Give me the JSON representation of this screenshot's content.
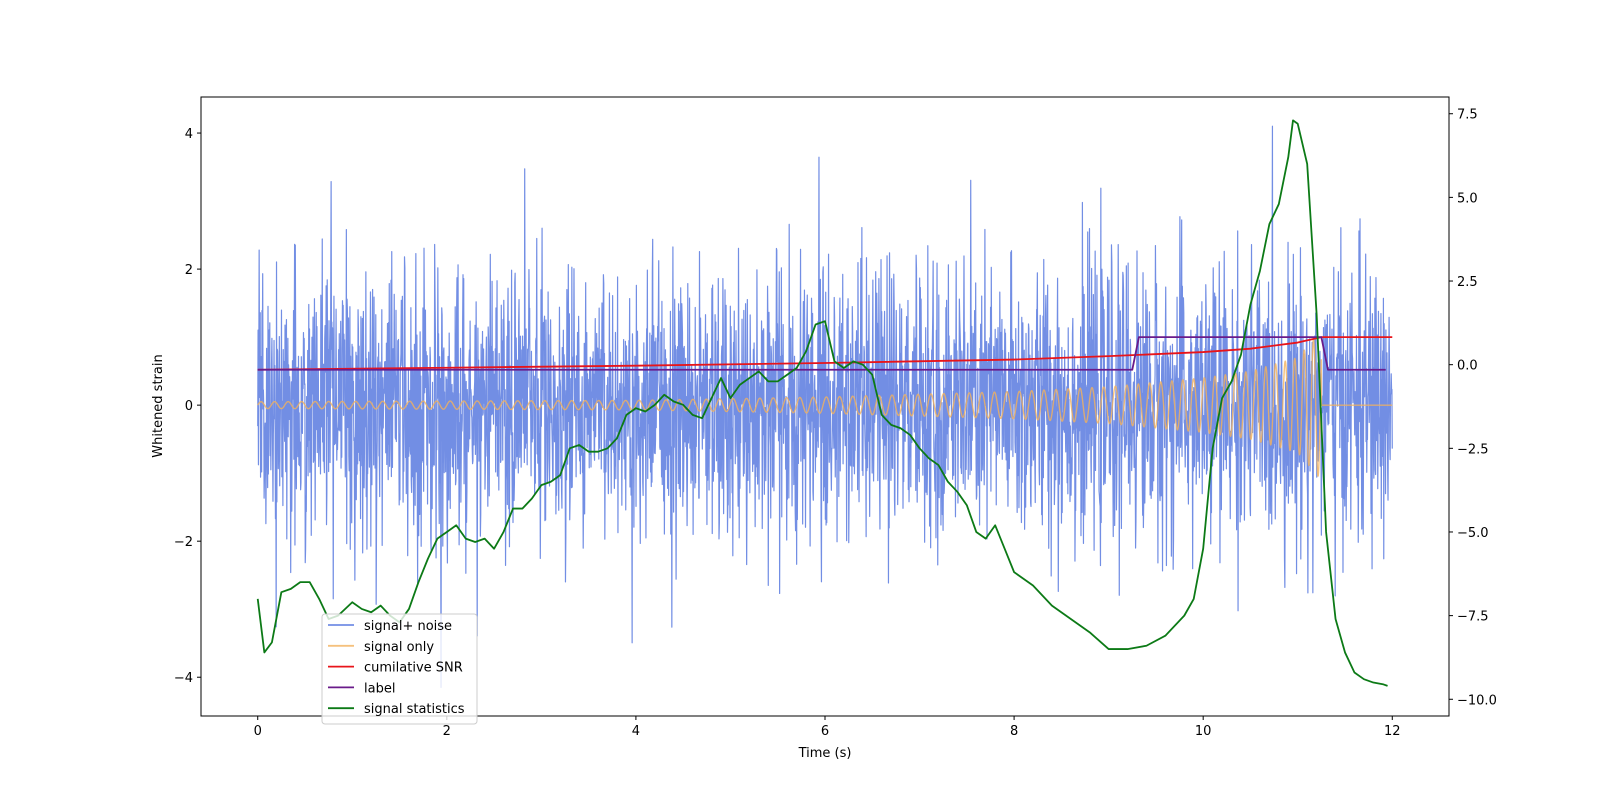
{
  "chart_data": {
    "type": "line",
    "xlabel": "Time (s)",
    "ylabel": "Whitened strain",
    "xlim": [
      -0.6,
      12.6
    ],
    "ylim": [
      -4.57,
      4.53
    ],
    "y2lim": [
      -10.5,
      8.0
    ],
    "x_ticks": [
      0,
      2,
      4,
      6,
      8,
      10,
      12
    ],
    "x_tick_labels": [
      "0",
      "2",
      "4",
      "6",
      "8",
      "10",
      "12"
    ],
    "y_ticks": [
      -4,
      -2,
      0,
      2,
      4
    ],
    "y_tick_labels": [
      "−4",
      "−2",
      "0",
      "2",
      "4"
    ],
    "y2_ticks": [
      -10.0,
      -7.5,
      -5.0,
      -2.5,
      0.0,
      2.5,
      5.0,
      7.5
    ],
    "y2_tick_labels": [
      "−10.0",
      "−7.5",
      "−5.0",
      "−2.5",
      "0.0",
      "2.5",
      "5.0",
      "7.5"
    ],
    "legend_position": "lower-left",
    "series": [
      {
        "name": "signal+ noise",
        "axis": "left",
        "color": "#6a88e3",
        "kind": "noise",
        "x_range": [
          0,
          12
        ],
        "envelope_std": 1.0,
        "approx_range": [
          -4.15,
          4.1
        ]
      },
      {
        "name": "signal only",
        "axis": "left",
        "color": "#f2b25c",
        "kind": "chirp",
        "x_range": [
          0,
          12
        ],
        "merger_time": 11.25,
        "amplitude_points": [
          [
            0,
            0.05
          ],
          [
            4,
            0.07
          ],
          [
            6,
            0.12
          ],
          [
            8,
            0.2
          ],
          [
            9,
            0.27
          ],
          [
            10,
            0.4
          ],
          [
            10.5,
            0.5
          ],
          [
            11,
            0.7
          ],
          [
            11.25,
            1.1
          ]
        ]
      },
      {
        "name": "cumilative SNR",
        "axis": "left",
        "color": "#e8141a",
        "x": [
          0,
          2,
          4,
          6,
          8,
          9,
          10,
          10.5,
          11,
          11.25,
          12
        ],
        "y": [
          0.52,
          0.55,
          0.58,
          0.62,
          0.67,
          0.72,
          0.78,
          0.83,
          0.92,
          1.0,
          1.0
        ]
      },
      {
        "name": "label",
        "axis": "left",
        "color": "#6a1b8a",
        "x": [
          0,
          9.25,
          9.32,
          11.25,
          11.32,
          11.93
        ],
        "y": [
          0.52,
          0.52,
          1.0,
          1.0,
          0.52,
          0.52
        ]
      },
      {
        "name": "signal statistics",
        "axis": "right",
        "color": "#0c7a16",
        "x": [
          0.0,
          0.07,
          0.15,
          0.25,
          0.35,
          0.45,
          0.55,
          0.65,
          0.75,
          0.85,
          1.0,
          1.1,
          1.2,
          1.3,
          1.4,
          1.5,
          1.6,
          1.7,
          1.8,
          1.9,
          2.0,
          2.1,
          2.2,
          2.3,
          2.4,
          2.5,
          2.6,
          2.7,
          2.8,
          2.9,
          3.0,
          3.1,
          3.2,
          3.3,
          3.4,
          3.5,
          3.6,
          3.7,
          3.8,
          3.9,
          4.0,
          4.1,
          4.2,
          4.3,
          4.4,
          4.5,
          4.6,
          4.7,
          4.8,
          4.9,
          5.0,
          5.1,
          5.2,
          5.3,
          5.4,
          5.5,
          5.6,
          5.7,
          5.8,
          5.9,
          6.0,
          6.1,
          6.2,
          6.3,
          6.4,
          6.5,
          6.6,
          6.7,
          6.8,
          6.9,
          7.0,
          7.1,
          7.2,
          7.3,
          7.4,
          7.5,
          7.6,
          7.7,
          7.8,
          7.9,
          8.0,
          8.2,
          8.4,
          8.6,
          8.8,
          9.0,
          9.2,
          9.4,
          9.6,
          9.8,
          9.9,
          10.0,
          10.1,
          10.2,
          10.3,
          10.4,
          10.5,
          10.6,
          10.7,
          10.8,
          10.9,
          10.95,
          11.0,
          11.1,
          11.2,
          11.3,
          11.4,
          11.5,
          11.6,
          11.7,
          11.8,
          11.9,
          11.95
        ],
        "y": [
          -7.0,
          -8.6,
          -8.3,
          -6.8,
          -6.7,
          -6.5,
          -6.5,
          -7.0,
          -7.6,
          -7.5,
          -7.1,
          -7.3,
          -7.4,
          -7.2,
          -7.5,
          -7.7,
          -7.3,
          -6.5,
          -5.8,
          -5.2,
          -5.0,
          -4.8,
          -5.2,
          -5.3,
          -5.2,
          -5.5,
          -5.0,
          -4.3,
          -4.3,
          -4.0,
          -3.6,
          -3.5,
          -3.3,
          -2.5,
          -2.4,
          -2.6,
          -2.6,
          -2.5,
          -2.2,
          -1.5,
          -1.3,
          -1.4,
          -1.2,
          -0.9,
          -1.1,
          -1.2,
          -1.5,
          -1.6,
          -1.0,
          -0.4,
          -1.0,
          -0.6,
          -0.4,
          -0.2,
          -0.5,
          -0.5,
          -0.3,
          -0.1,
          0.4,
          1.2,
          1.3,
          0.1,
          -0.1,
          0.1,
          0.0,
          -0.3,
          -1.5,
          -1.8,
          -1.9,
          -2.1,
          -2.5,
          -2.8,
          -3.0,
          -3.5,
          -3.8,
          -4.2,
          -5.0,
          -5.2,
          -4.8,
          -5.5,
          -6.2,
          -6.6,
          -7.2,
          -7.6,
          -8.0,
          -8.5,
          -8.5,
          -8.4,
          -8.1,
          -7.5,
          -7.0,
          -5.5,
          -2.5,
          -1.0,
          -0.5,
          0.3,
          1.8,
          2.8,
          4.2,
          4.8,
          6.2,
          7.3,
          7.2,
          6.0,
          1.5,
          -5.0,
          -7.6,
          -8.6,
          -9.2,
          -9.4,
          -9.5,
          -9.55,
          -9.6
        ]
      }
    ]
  }
}
